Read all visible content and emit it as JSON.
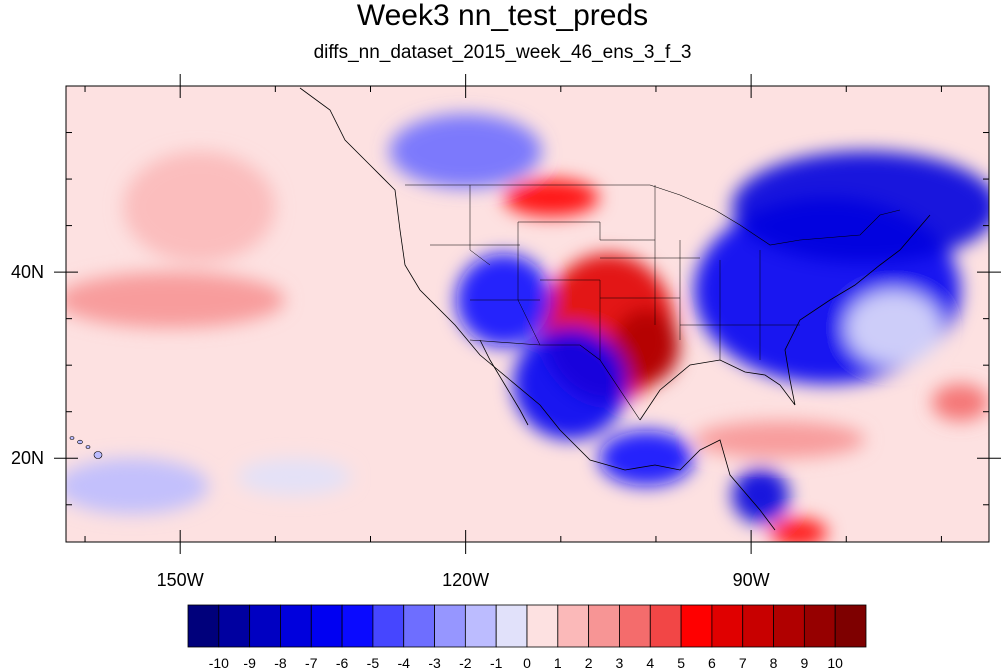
{
  "title": "Week3 nn_test_preds",
  "subtitle": "diffs_nn_dataset_2015_week_46_ens_3_f_3",
  "map": {
    "lon_range": [
      -162,
      -65
    ],
    "lat_range": [
      11,
      60
    ],
    "x_ticks": [
      {
        "lon": -150,
        "label": "150W"
      },
      {
        "lon": -120,
        "label": "120W"
      },
      {
        "lon": -90,
        "label": "90W"
      }
    ],
    "y_ticks": [
      {
        "lat": 40,
        "label": "40N"
      },
      {
        "lat": 20,
        "label": "20N"
      }
    ],
    "anomalies": [
      {
        "lon": -105,
        "lat": 34,
        "rx": 7,
        "ry": 8,
        "v": 6
      },
      {
        "lon": -101,
        "lat": 32,
        "rx": 3.5,
        "ry": 4,
        "v": 8
      },
      {
        "lon": -111,
        "lat": 48,
        "rx": 5,
        "ry": 2,
        "v": 5
      },
      {
        "lon": -82,
        "lat": 38,
        "rx": 14,
        "ry": 10,
        "v": -7
      },
      {
        "lon": -78,
        "lat": 47,
        "rx": 14,
        "ry": 6,
        "v": -8
      },
      {
        "lon": -116,
        "lat": 37,
        "rx": 5,
        "ry": 5,
        "v": -6
      },
      {
        "lon": -109,
        "lat": 28,
        "rx": 6,
        "ry": 6,
        "v": -7
      },
      {
        "lon": -101,
        "lat": 20,
        "rx": 5,
        "ry": 3,
        "v": -6
      },
      {
        "lon": -89,
        "lat": 16,
        "rx": 3,
        "ry": 3,
        "v": -8
      },
      {
        "lon": -120,
        "lat": 53,
        "rx": 8,
        "ry": 4,
        "v": -4
      },
      {
        "lon": -151,
        "lat": 37,
        "rx": 12,
        "ry": 3,
        "v": 2
      },
      {
        "lon": -148,
        "lat": 47,
        "rx": 8,
        "ry": 6,
        "v": 1
      },
      {
        "lon": -87,
        "lat": 22,
        "rx": 9,
        "ry": 2,
        "v": 2
      },
      {
        "lon": -68,
        "lat": 26,
        "rx": 3,
        "ry": 2,
        "v": 3
      },
      {
        "lon": -85,
        "lat": 12,
        "rx": 3,
        "ry": 1.5,
        "v": 5
      },
      {
        "lon": -155,
        "lat": 17,
        "rx": 8,
        "ry": 3,
        "v": -2
      },
      {
        "lon": -138,
        "lat": 18,
        "rx": 6,
        "ry": 2,
        "v": -1
      },
      {
        "lon": -75,
        "lat": 34,
        "rx": 5,
        "ry": 4,
        "v": -1
      }
    ]
  },
  "colorbar": {
    "labels": [
      "-10",
      "-9",
      "-8",
      "-7",
      "-6",
      "-5",
      "-4",
      "-3",
      "-2",
      "-1",
      "0",
      "1",
      "2",
      "3",
      "4",
      "5",
      "6",
      "7",
      "8",
      "9",
      "10"
    ],
    "colors": [
      "#00007b",
      "#0000a0",
      "#0000c2",
      "#0000dd",
      "#0000f2",
      "#0a0aff",
      "#4646ff",
      "#6e6eff",
      "#9696ff",
      "#bcbcff",
      "#e1e1fa",
      "#fde1e1",
      "#fbb9b9",
      "#f79595",
      "#f46c6c",
      "#f24646",
      "#ff0000",
      "#e00000",
      "#c80000",
      "#b00000",
      "#960000",
      "#7e0000"
    ]
  }
}
